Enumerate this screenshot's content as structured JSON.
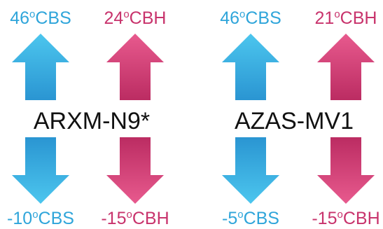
{
  "degree_mark": "o",
  "units": [
    {
      "model": "ARXM-N9*",
      "cooling_max": {
        "value": "46",
        "unit": "CBS"
      },
      "heating_max": {
        "value": "24",
        "unit": "CBH"
      },
      "cooling_min": {
        "value": "-10",
        "unit": "CBS"
      },
      "heating_min": {
        "value": "-15",
        "unit": "CBH"
      }
    },
    {
      "model": "AZAS-MV1",
      "cooling_max": {
        "value": "46",
        "unit": "CBS"
      },
      "heating_max": {
        "value": "21",
        "unit": "CBH"
      },
      "cooling_min": {
        "value": "-5",
        "unit": "CBS"
      },
      "heating_min": {
        "value": "-15",
        "unit": "CBH"
      }
    }
  ],
  "colors": {
    "cooling": "#2fa5da",
    "cooling_light": "#4cc6ee",
    "heating": "#c8336c",
    "heating_light": "#e85a8e",
    "text": "#111111"
  },
  "icons": {
    "up": "arrow-up-icon",
    "down": "arrow-down-icon"
  }
}
